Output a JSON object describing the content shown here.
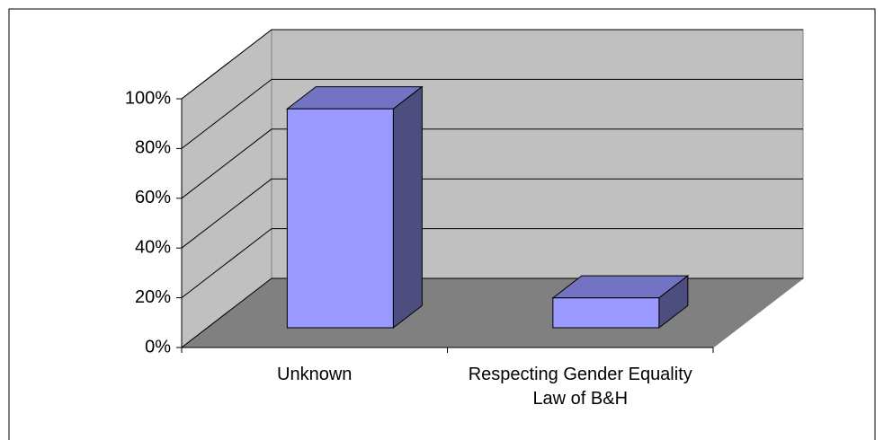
{
  "chart_data": {
    "type": "bar3d",
    "categories": [
      "Unknown",
      "Respecting Gender Equality Law of B&H"
    ],
    "values": [
      88,
      12
    ],
    "color": "#9999ff",
    "ylim": [
      0,
      100
    ],
    "yticks": [
      {
        "value": 0,
        "label": "0%"
      },
      {
        "value": 20,
        "label": "20%"
      },
      {
        "value": 40,
        "label": "40%"
      },
      {
        "value": 60,
        "label": "60%"
      },
      {
        "value": 80,
        "label": "80%"
      },
      {
        "value": 100,
        "label": "100%"
      }
    ],
    "grid": true
  }
}
